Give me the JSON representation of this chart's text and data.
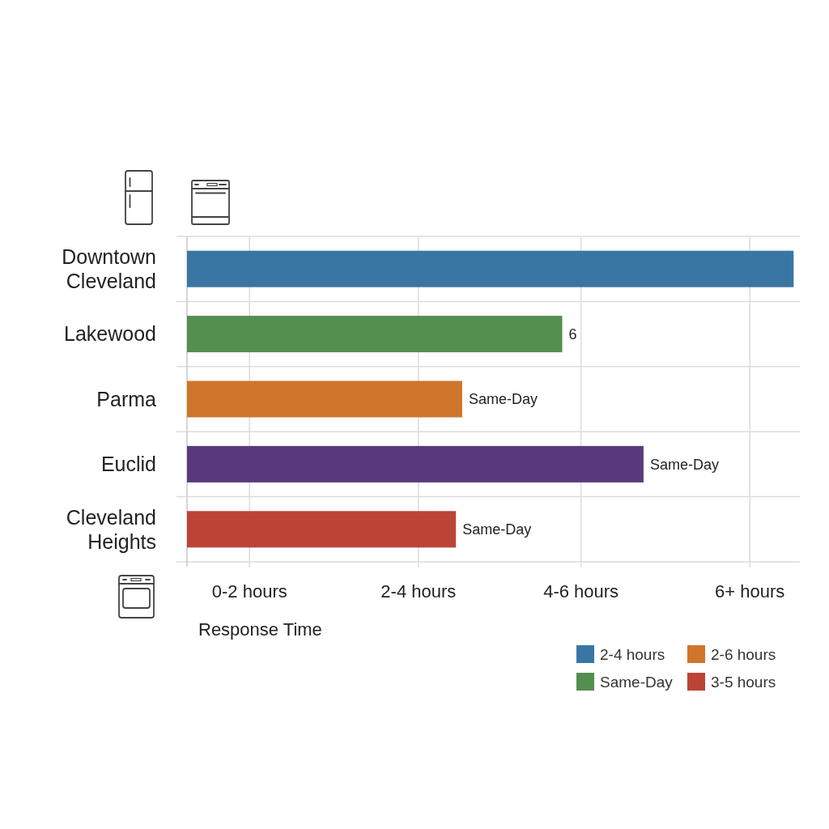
{
  "chart_data": {
    "type": "bar",
    "orientation": "horizontal",
    "stacked": true,
    "categories": [
      "Downtown Cleveland",
      "Lakewood",
      "Parma",
      "Euclid",
      "Cleveland Heights"
    ],
    "series": [
      {
        "name": "2-4 hours",
        "color": "#3a76a3",
        "values": [
          9.7,
          null,
          null,
          null,
          null
        ]
      },
      {
        "name": "Same-Day",
        "color": "#548f4f",
        "values": [
          null,
          6,
          null,
          null,
          null
        ],
        "value_labels": [
          null,
          "6",
          null,
          null,
          null
        ]
      },
      {
        "name": "2-6 hours",
        "color": "#d0752c",
        "values": [
          null,
          null,
          4.4,
          null,
          null
        ],
        "value_labels": [
          null,
          null,
          "Same-Day",
          null,
          null
        ]
      },
      {
        "color": "#5a3a7c",
        "values": [
          null,
          null,
          null,
          7.3,
          null
        ],
        "value_labels": [
          null,
          null,
          null,
          "Same-Day",
          null
        ]
      },
      {
        "name": "3-5 hours",
        "color": "#bb4437",
        "values": [
          null,
          null,
          null,
          null,
          4.3
        ],
        "value_labels": [
          null,
          null,
          null,
          null,
          "Same-Day"
        ]
      }
    ],
    "xlabel": "Response Time",
    "xlim": [
      0,
      9.8
    ],
    "ref_lines": [
      {
        "axis": "x",
        "value": 1.0,
        "label": "0-2 hours"
      },
      {
        "axis": "x",
        "value": 3.7,
        "label": "2-4 hours"
      },
      {
        "axis": "x",
        "value": 6.3,
        "label": "4-6 hours"
      },
      {
        "axis": "x",
        "value": 9.0,
        "label": "6+ hours"
      }
    ],
    "grid": "y",
    "legend": "bottom right"
  }
}
